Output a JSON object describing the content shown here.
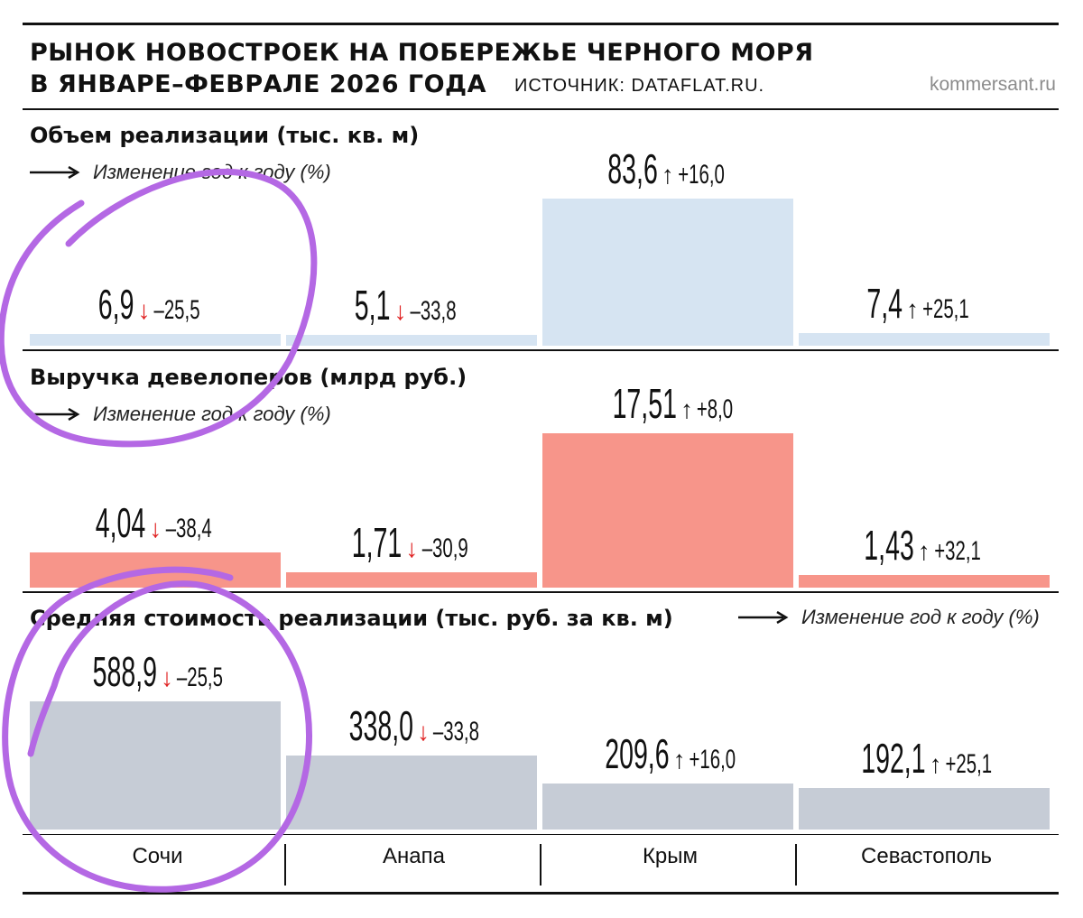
{
  "header": {
    "title_line1": "РЫНОК НОВОСТРОЕК НА ПОБЕРЕЖЬЕ ЧЕРНОГО МОРЯ",
    "title_line2": "В ЯНВАРЕ–ФЕВРАЛЕ 2026 ГОДА",
    "source": "ИСТОЧНИК: DATAFLAT.RU.",
    "brand": "kommersant.ru"
  },
  "legend_text": "Изменение год к году (%)",
  "colors": {
    "volume": "#d6e4f2",
    "revenue": "#f7958a",
    "price": "#c6ccd6",
    "down_arrow": "#e02323",
    "up_arrow": "#111111"
  },
  "annotation": {
    "color": "#b468e4"
  },
  "chart_data": [
    {
      "type": "bar",
      "title": "Объем реализации (тыс. кв. м)",
      "categories": [
        "Сочи",
        "Анапа",
        "Крым",
        "Севастополь"
      ],
      "values": [
        6.9,
        5.1,
        83.6,
        7.4
      ],
      "value_labels": [
        "6,9",
        "5,1",
        "83,6",
        "7,4"
      ],
      "change_yoy": [
        -25.5,
        -33.8,
        16.0,
        25.1
      ],
      "change_labels": [
        "–25,5",
        "–33,8",
        "+16,0",
        "+25,1"
      ]
    },
    {
      "type": "bar",
      "title": "Выручка девелоперов (млрд руб.)",
      "categories": [
        "Сочи",
        "Анапа",
        "Крым",
        "Севастополь"
      ],
      "values": [
        4.04,
        1.71,
        17.51,
        1.43
      ],
      "value_labels": [
        "4,04",
        "1,71",
        "17,51",
        "1,43"
      ],
      "change_yoy": [
        -38.4,
        -30.9,
        8.0,
        32.1
      ],
      "change_labels": [
        "–38,4",
        "–30,9",
        "+8,0",
        "+32,1"
      ]
    },
    {
      "type": "bar",
      "title": "Средняя стоимость реализации (тыс. руб. за кв. м)",
      "categories": [
        "Сочи",
        "Анапа",
        "Крым",
        "Севастополь"
      ],
      "values": [
        588.9,
        338.0,
        209.6,
        192.1
      ],
      "value_labels": [
        "588,9",
        "338,0",
        "209,6",
        "192,1"
      ],
      "change_yoy": [
        -25.5,
        -33.8,
        16.0,
        25.1
      ],
      "change_labels": [
        "–25,5",
        "–33,8",
        "+16,0",
        "+25,1"
      ]
    }
  ],
  "categories": [
    "Сочи",
    "Анапа",
    "Крым",
    "Севастополь"
  ]
}
